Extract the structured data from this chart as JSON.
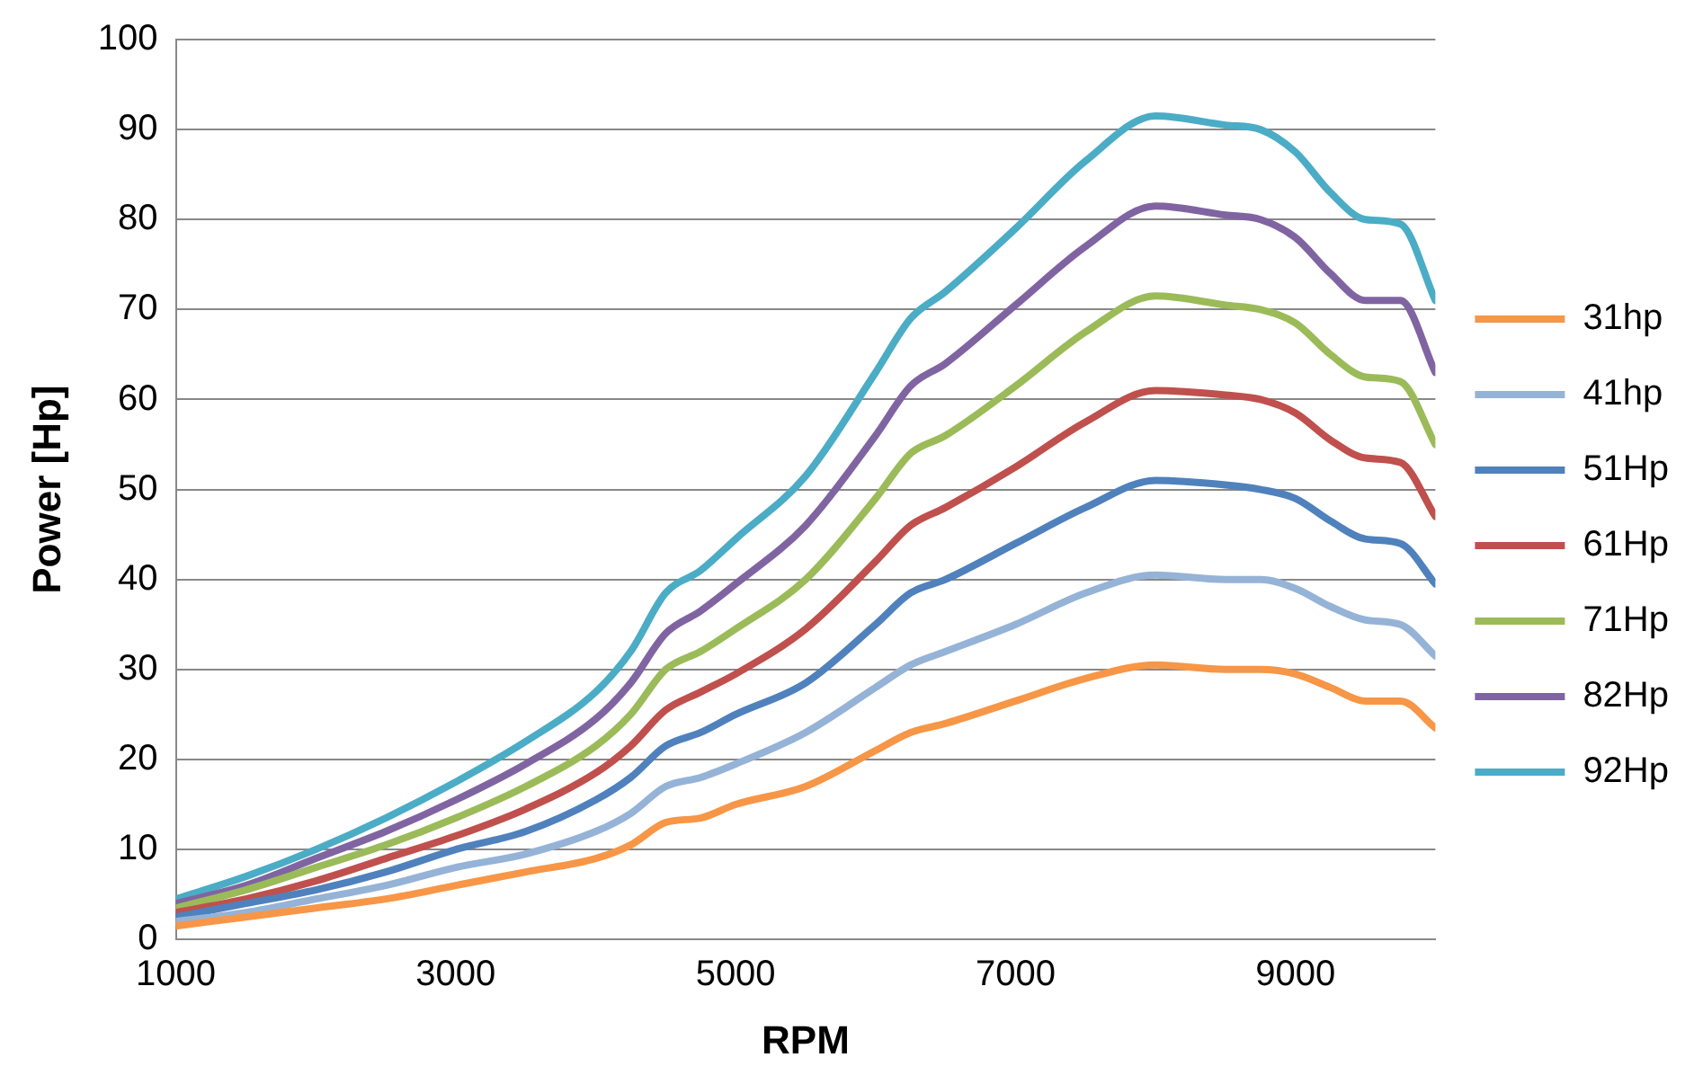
{
  "chart_data": {
    "type": "line",
    "xlabel": "RPM",
    "ylabel": "Power [Hp]",
    "x": [
      1000,
      1500,
      2000,
      2500,
      3000,
      3500,
      4000,
      4250,
      4500,
      4750,
      5000,
      5500,
      6000,
      6250,
      6500,
      7000,
      7500,
      8000,
      8500,
      8750,
      9000,
      9250,
      9500,
      9750,
      10000
    ],
    "xlim": [
      1000,
      10000
    ],
    "xticks": [
      1000,
      3000,
      5000,
      7000,
      9000
    ],
    "ylim": [
      0,
      100
    ],
    "yticks": [
      0,
      10,
      20,
      30,
      40,
      50,
      60,
      70,
      80,
      90,
      100
    ],
    "grid": "y",
    "legend": "right",
    "marker": "none",
    "line_style": "solid",
    "series": [
      {
        "name": "31hp",
        "color": "#f79646",
        "values": [
          1.5,
          2.5,
          3.5,
          4.5,
          6,
          7.5,
          9,
          10.5,
          13,
          13.5,
          15,
          17,
          21,
          23,
          24,
          26.5,
          29,
          30.5,
          30,
          30,
          29.5,
          28,
          26.5,
          26.5,
          23.5
        ]
      },
      {
        "name": "41hp",
        "color": "#95b3d7",
        "values": [
          2,
          3,
          4.5,
          6,
          8,
          9.5,
          12,
          14,
          17,
          18,
          19.5,
          23,
          28,
          30.5,
          32,
          35,
          38.5,
          40.5,
          40,
          40,
          39,
          37,
          35.5,
          35,
          31.5
        ]
      },
      {
        "name": "51Hp",
        "color": "#4f81bd",
        "values": [
          2.5,
          4,
          5.5,
          7.5,
          10,
          12,
          15.5,
          18,
          21.5,
          23,
          25,
          28.5,
          35,
          38.5,
          40,
          44,
          48,
          51,
          50.5,
          50,
          49,
          46.5,
          44.5,
          44,
          39.5
        ]
      },
      {
        "name": "61Hp",
        "color": "#c0504d",
        "values": [
          3,
          4.5,
          6.5,
          9,
          11.5,
          14.5,
          18.5,
          21.5,
          25.5,
          27.5,
          29.5,
          34.5,
          42,
          46,
          48,
          52.5,
          57.5,
          61,
          60.5,
          60,
          58.5,
          55.5,
          53.5,
          53,
          47
        ]
      },
      {
        "name": "71Hp",
        "color": "#9bbb59",
        "values": [
          3.5,
          5.5,
          8,
          10.5,
          13.5,
          17,
          21.5,
          25,
          30,
          32,
          34.5,
          40,
          49,
          54,
          56,
          61.5,
          67.5,
          71.5,
          70.5,
          70,
          68.5,
          65,
          62.5,
          62,
          55
        ]
      },
      {
        "name": "82Hp",
        "color": "#8064a2",
        "values": [
          4,
          6,
          9,
          12,
          15.5,
          19.5,
          24.5,
          28.5,
          34,
          36.5,
          39.5,
          46,
          56,
          61.5,
          64,
          70.5,
          77,
          81.5,
          80.5,
          80,
          78,
          74,
          71,
          71,
          63
        ]
      },
      {
        "name": "92Hp",
        "color": "#4bacc6",
        "values": [
          4.5,
          7,
          10,
          13.5,
          17.5,
          22,
          27.5,
          32,
          38.5,
          41,
          44.5,
          51.5,
          63,
          69,
          72,
          79,
          86.5,
          91.5,
          90.5,
          90,
          87.5,
          83,
          80,
          79.5,
          71
        ]
      }
    ]
  }
}
